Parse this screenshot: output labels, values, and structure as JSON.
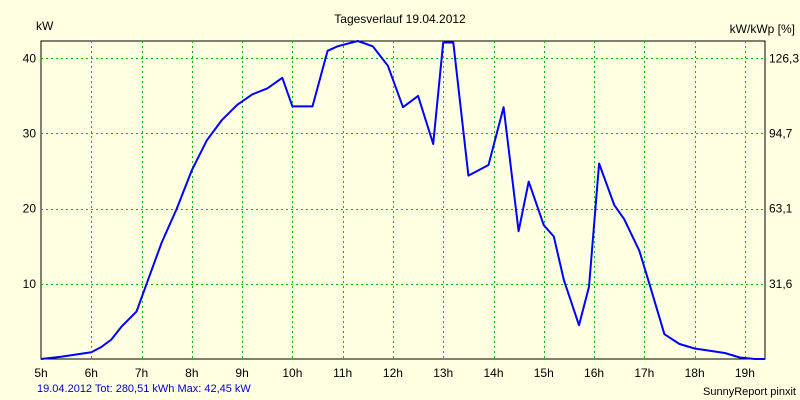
{
  "chart_data": {
    "type": "line",
    "title": "Tagesverlauf 19.04.2012",
    "ylabel_left": "kW",
    "ylabel_right": "kW/kWp [%]",
    "footer_left": "19.04.2012 Tot: 280,51 kWh Max: 42,45 kW",
    "footer_right": "SunnyReport pinxit",
    "x_ticks": [
      "5h",
      "6h",
      "7h",
      "8h",
      "9h",
      "10h",
      "11h",
      "12h",
      "13h",
      "14h",
      "15h",
      "16h",
      "17h",
      "18h",
      "19h"
    ],
    "x_tick_values": [
      5,
      6,
      7,
      8,
      9,
      10,
      11,
      12,
      13,
      14,
      15,
      16,
      17,
      18,
      19
    ],
    "y_ticks_left": [
      "10",
      "20",
      "30",
      "40"
    ],
    "y_tick_values_left": [
      10,
      20,
      30,
      40
    ],
    "y_ticks_right": [
      "31,6",
      "63,1",
      "94,7",
      "126,3"
    ],
    "xlim": [
      5,
      19.4
    ],
    "ylim": [
      0,
      42.3
    ],
    "grid": true,
    "colors": {
      "background": "#ffffe1",
      "grid": "#00bb00",
      "line": "#0000ff",
      "footer_left": "#0000cc"
    },
    "series": [
      {
        "x": [
          5.0,
          5.4,
          5.7,
          6.0,
          6.2,
          6.4,
          6.6,
          6.9,
          7.1,
          7.4,
          7.7,
          8.0,
          8.3,
          8.6,
          8.9,
          9.2,
          9.5,
          9.8,
          10.0,
          10.4,
          10.7,
          10.9,
          11.3,
          11.6,
          11.9,
          12.2,
          12.5,
          12.8,
          13.0,
          13.2,
          13.5,
          13.9,
          14.2,
          14.5,
          14.7,
          15.0,
          15.2,
          15.4,
          15.7,
          15.9,
          16.1,
          16.4,
          16.6,
          16.9,
          17.1,
          17.4,
          17.7,
          18.0,
          18.2,
          18.6,
          18.9,
          19.2,
          19.4
        ],
        "y": [
          0.0,
          0.3,
          0.6,
          0.9,
          1.6,
          2.6,
          4.3,
          6.3,
          10.0,
          15.5,
          20.0,
          25.1,
          29.1,
          31.8,
          33.8,
          35.2,
          36.0,
          37.4,
          33.6,
          33.6,
          41.0,
          41.6,
          42.3,
          41.6,
          39.0,
          33.5,
          35.0,
          28.6,
          42.1,
          42.1,
          24.4,
          25.8,
          33.5,
          17.0,
          23.6,
          17.8,
          16.3,
          10.5,
          4.5,
          9.6,
          26.0,
          20.5,
          18.6,
          14.4,
          10.0,
          3.3,
          2.0,
          1.4,
          1.2,
          0.8,
          0.2,
          0.0,
          0.0
        ]
      }
    ]
  }
}
